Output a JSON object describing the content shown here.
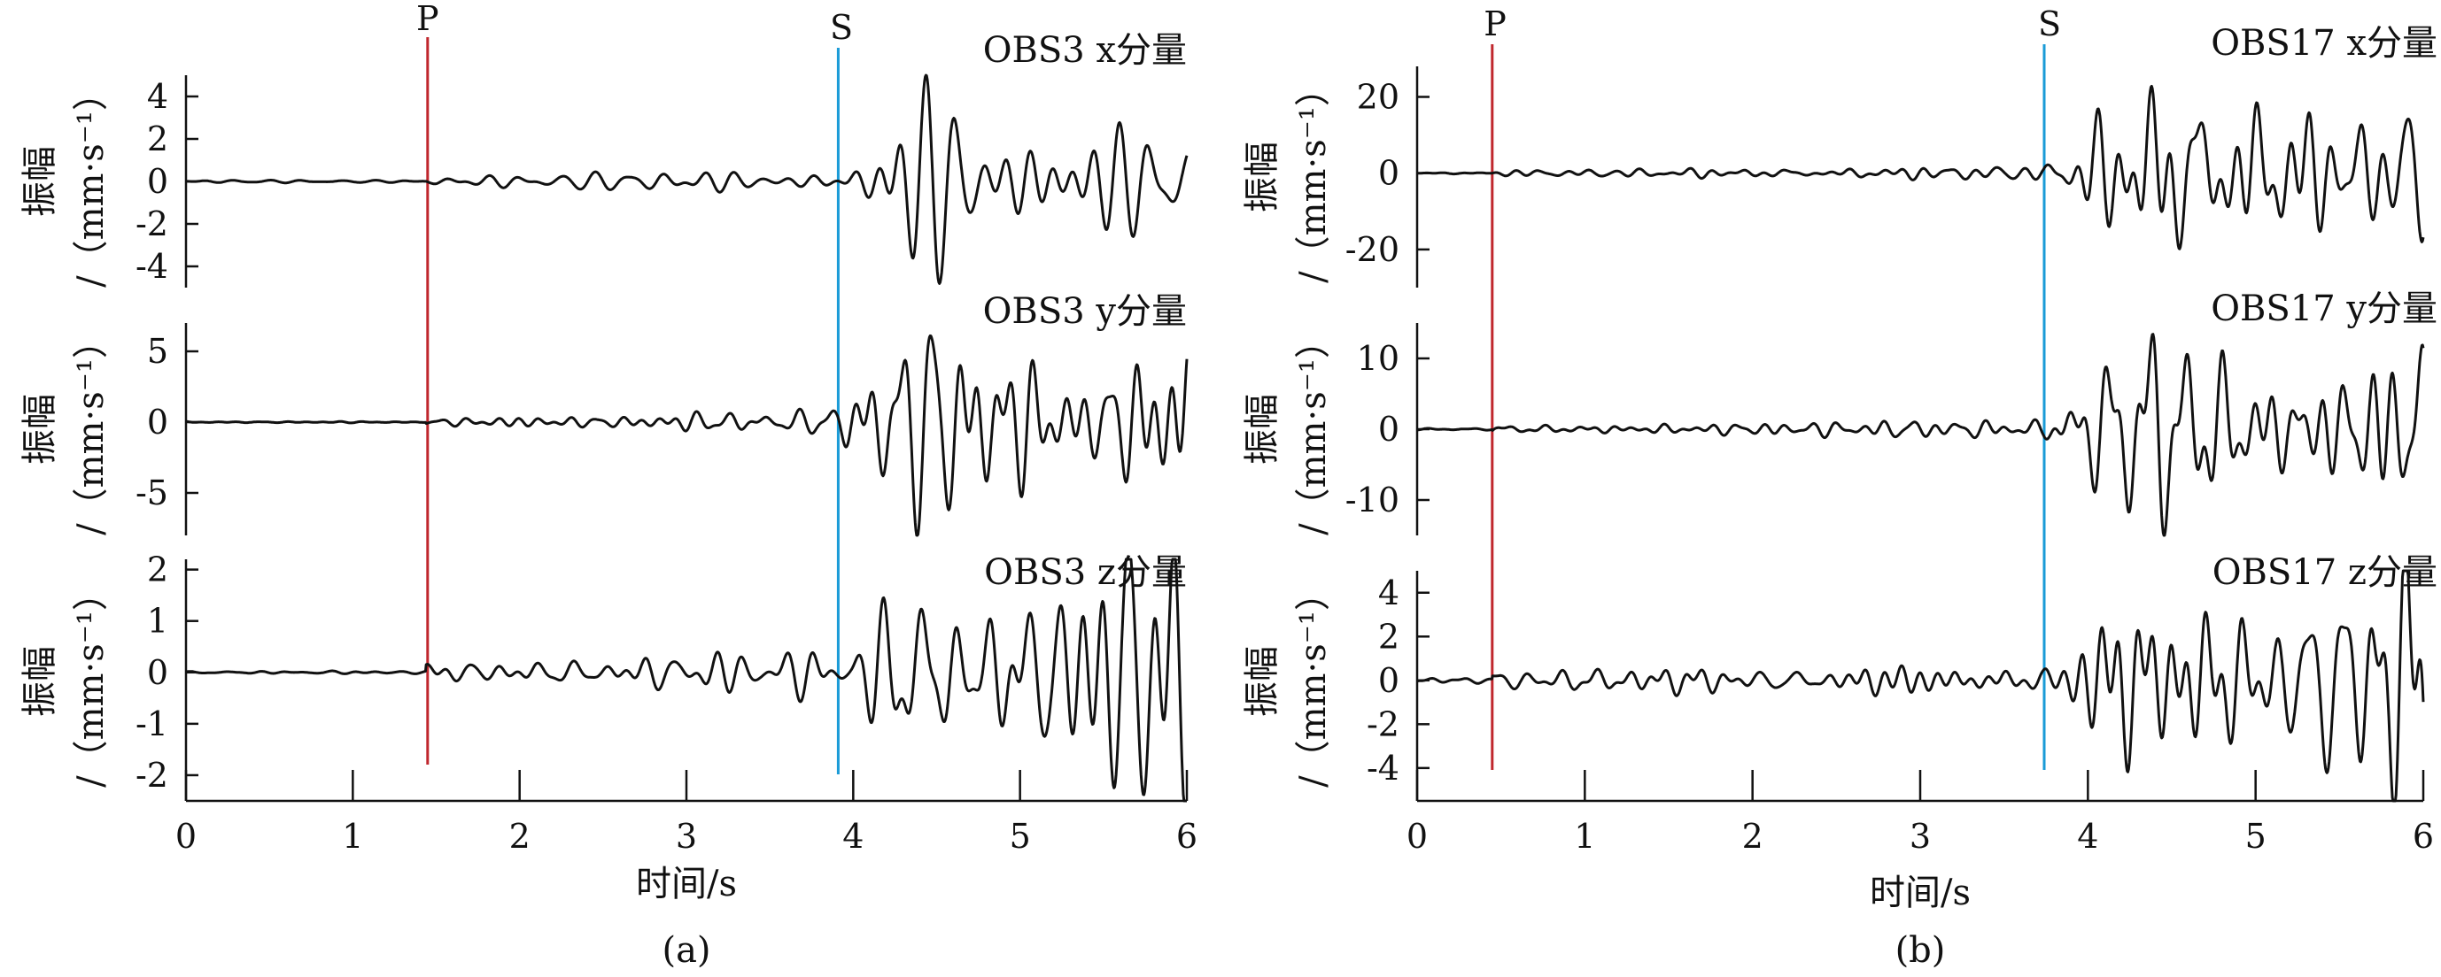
{
  "figure": {
    "xlabel": "时间/s",
    "ylabel_line1": "振幅",
    "ylabel_line2": "/（mm·s⁻¹）",
    "phase_labels": {
      "p": "P",
      "s": "S"
    },
    "colors": {
      "trace": "#111111",
      "p_line": "#c0272d",
      "s_line": "#1a9bd7"
    }
  },
  "chart_data": [
    {
      "type": "line",
      "panel": "(a)",
      "station": "OBS3",
      "xlim": [
        0,
        6
      ],
      "xticks": [
        0,
        1,
        2,
        3,
        4,
        5,
        6
      ],
      "p_arrival": 1.44,
      "s_arrival": 3.9,
      "components": [
        {
          "title": "OBS3 x分量",
          "axis": "x",
          "ylim": [
            -5,
            5
          ],
          "yticks": [
            -4,
            -2,
            0,
            2,
            4
          ],
          "envelope": {
            "pre_p": 0.05,
            "p_to_s": 0.5,
            "post_s": 5.0
          }
        },
        {
          "title": "OBS3 y分量",
          "axis": "y",
          "ylim": [
            -8,
            7
          ],
          "yticks": [
            -5,
            0,
            5
          ],
          "envelope": {
            "pre_p": 0.05,
            "p_to_s": 0.7,
            "post_s": 7.5
          }
        },
        {
          "title": "OBS3 z分量",
          "axis": "z",
          "ylim": [
            -2.5,
            2.2
          ],
          "yticks": [
            -2,
            -1,
            0,
            1,
            2
          ],
          "envelope": {
            "pre_p": 0.02,
            "p_to_s": 0.35,
            "post_s": 2.3
          }
        }
      ]
    },
    {
      "type": "line",
      "panel": "(b)",
      "station": "OBS17",
      "xlim": [
        0,
        6
      ],
      "xticks": [
        0,
        1,
        2,
        3,
        4,
        5,
        6
      ],
      "p_arrival": 0.45,
      "s_arrival": 3.73,
      "components": [
        {
          "title": "OBS17 x分量",
          "axis": "x",
          "ylim": [
            -30,
            28
          ],
          "yticks": [
            -20,
            0,
            20
          ],
          "envelope": {
            "pre_p": 0.2,
            "p_to_s": 1.6,
            "post_s": 26
          }
        },
        {
          "title": "OBS17 y分量",
          "axis": "y",
          "ylim": [
            -15,
            15
          ],
          "yticks": [
            -10,
            0,
            10
          ],
          "envelope": {
            "pre_p": 0.1,
            "p_to_s": 1.2,
            "post_s": 14
          }
        },
        {
          "title": "OBS17 z分量",
          "axis": "z",
          "ylim": [
            -5.5,
            5
          ],
          "yticks": [
            -4,
            -2,
            0,
            2,
            4
          ],
          "envelope": {
            "pre_p": 0.1,
            "p_to_s": 0.8,
            "post_s": 5
          }
        }
      ]
    }
  ]
}
